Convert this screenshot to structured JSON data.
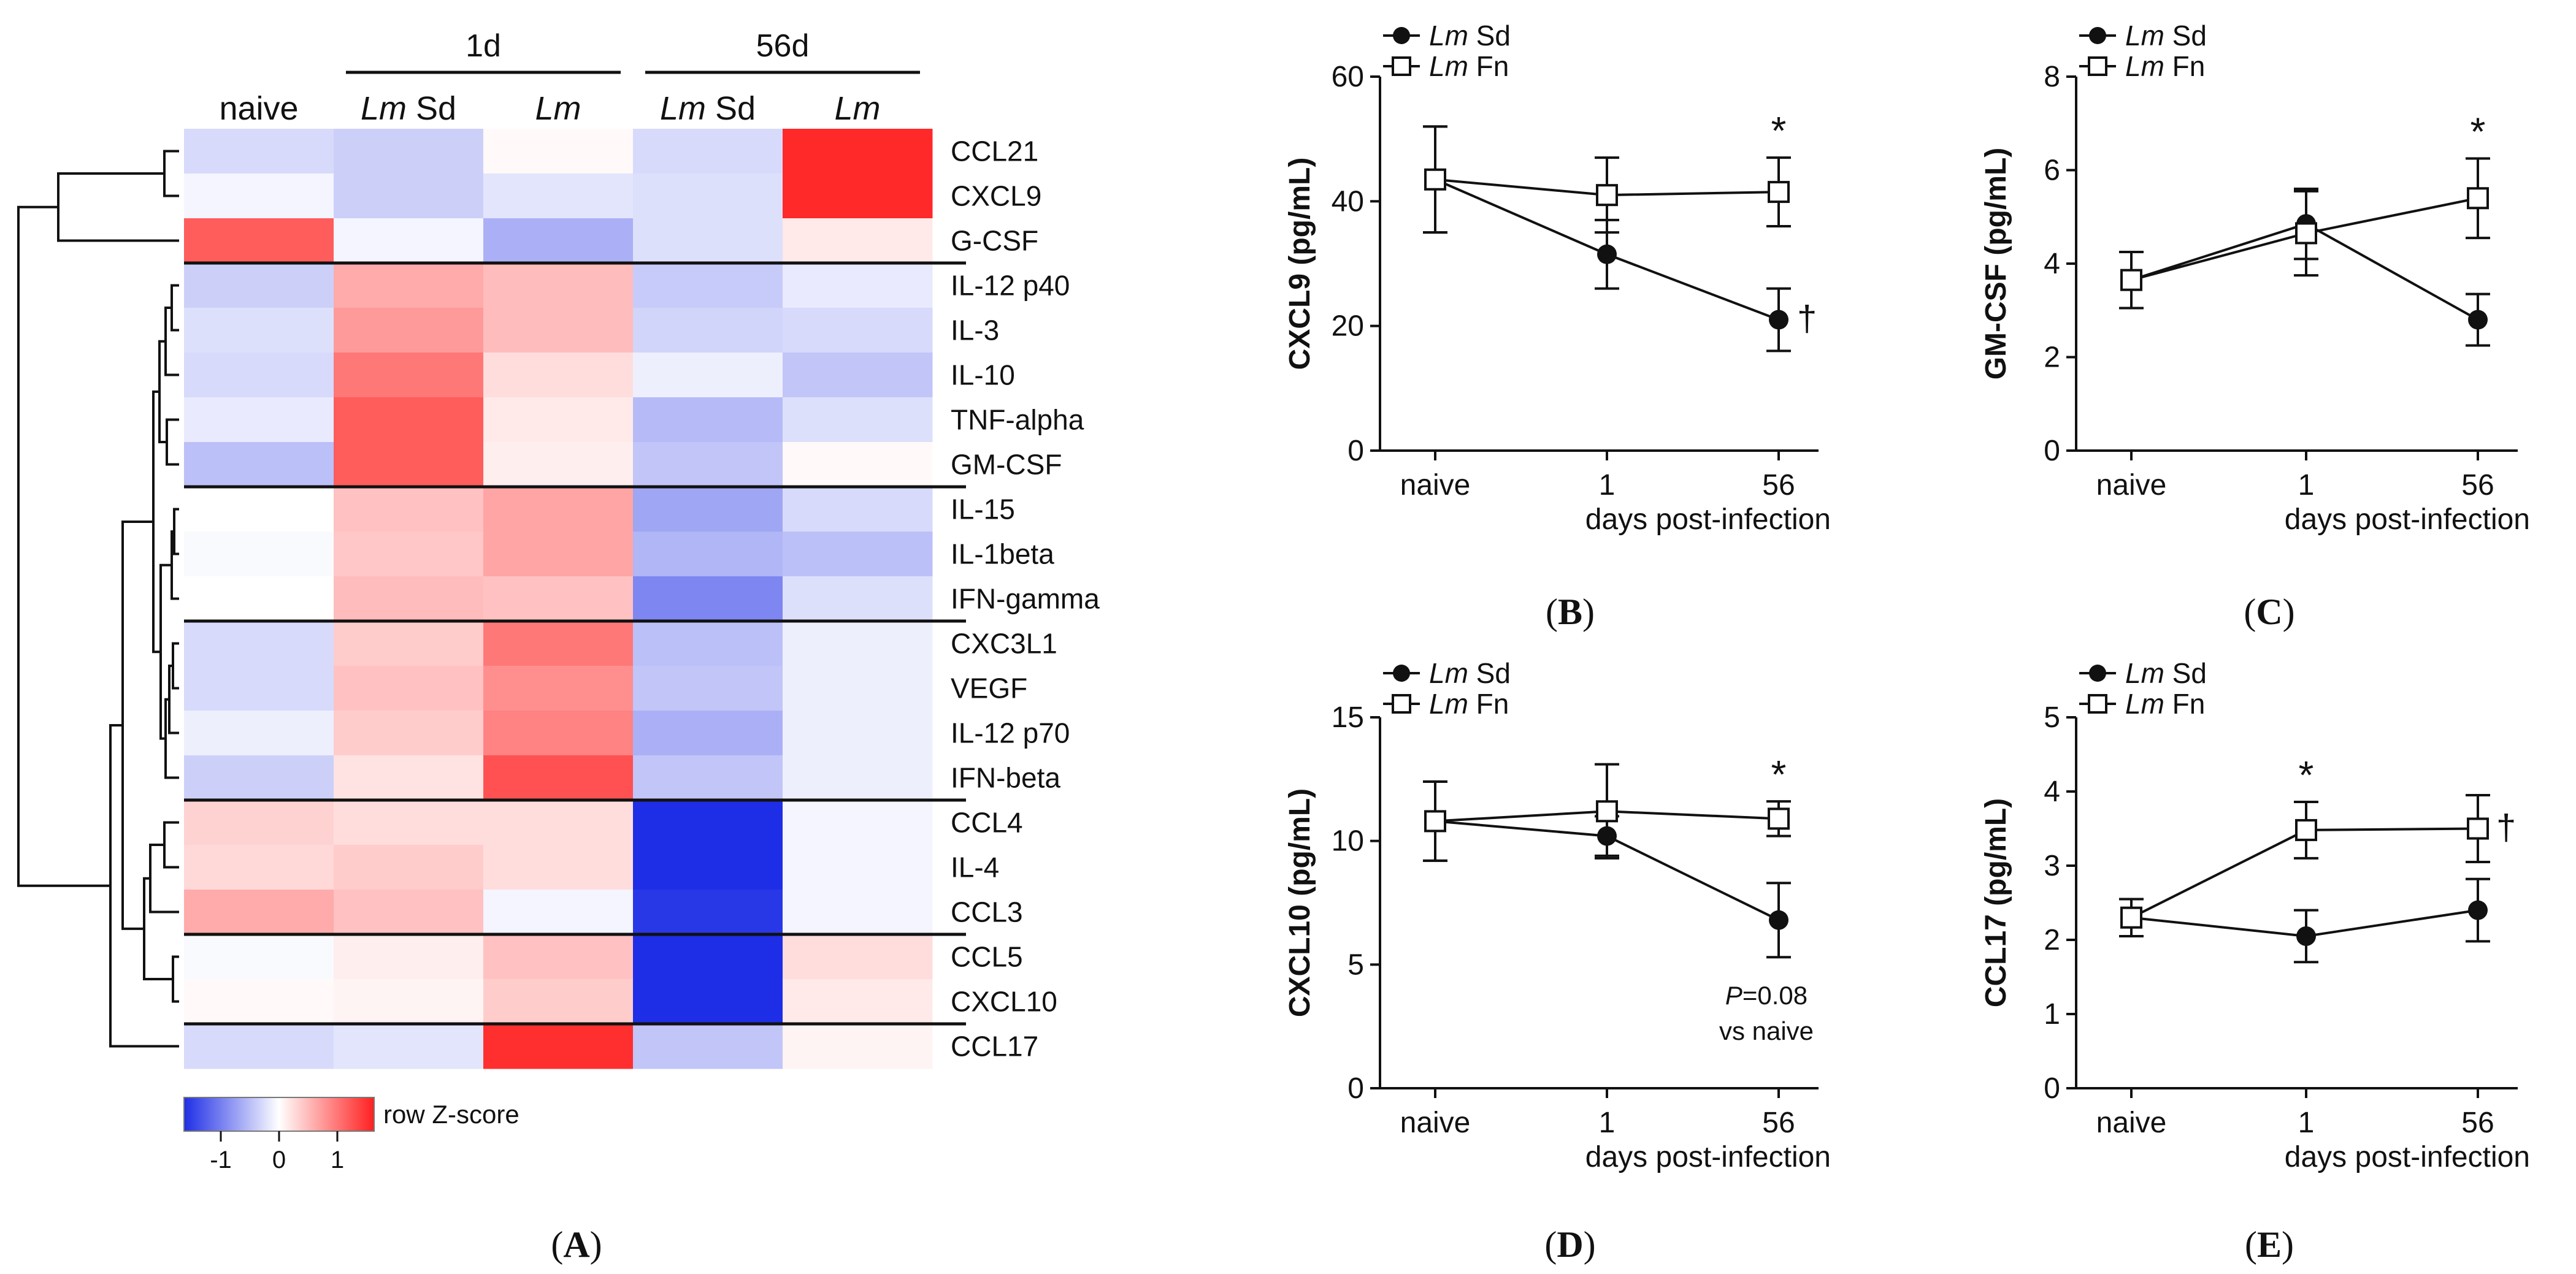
{
  "heatmap": {
    "group_headers": [
      "1d",
      "56d"
    ],
    "columns": [
      {
        "label": "naive",
        "italic": "",
        "rest": "naive"
      },
      {
        "label": "Lm Sd",
        "italic": "Lm",
        "rest": " Sd"
      },
      {
        "label": "Lm",
        "italic": "Lm",
        "rest": ""
      },
      {
        "label": "Lm Sd",
        "italic": "Lm",
        "rest": " Sd"
      },
      {
        "label": "Lm",
        "italic": "Lm",
        "rest": ""
      }
    ],
    "rows": [
      "CCL21",
      "CXCL9",
      "G-CSF",
      "IL-12 p40",
      "IL-3",
      "IL-10",
      "TNF-alpha",
      "GM-CSF",
      "IL-15",
      "IL-1beta",
      "IFN-gamma",
      "CXC3L1",
      "VEGF",
      "IL-12 p70",
      "IFN-beta",
      "CCL4",
      "IL-4",
      "CCL3",
      "CCL5",
      "CXCL10",
      "CCL17"
    ],
    "zscores": [
      [
        -0.35,
        -0.45,
        0.05,
        -0.35,
        1.9
      ],
      [
        -0.1,
        -0.45,
        -0.25,
        -0.3,
        1.9
      ],
      [
        1.45,
        -0.1,
        -0.75,
        -0.3,
        0.2
      ],
      [
        -0.45,
        0.75,
        0.6,
        -0.5,
        -0.2
      ],
      [
        -0.3,
        0.9,
        0.6,
        -0.4,
        -0.35
      ],
      [
        -0.35,
        1.2,
        0.3,
        -0.15,
        -0.55
      ],
      [
        -0.2,
        1.45,
        0.2,
        -0.65,
        -0.3
      ],
      [
        -0.6,
        1.45,
        0.15,
        -0.55,
        0.05
      ],
      [
        0.0,
        0.55,
        0.8,
        -0.85,
        -0.35
      ],
      [
        -0.05,
        0.5,
        0.8,
        -0.7,
        -0.6
      ],
      [
        0.0,
        0.6,
        0.55,
        -1.15,
        -0.3
      ],
      [
        -0.35,
        0.45,
        1.2,
        -0.6,
        -0.15
      ],
      [
        -0.35,
        0.55,
        1.0,
        -0.55,
        -0.15
      ],
      [
        -0.15,
        0.45,
        1.1,
        -0.75,
        -0.15
      ],
      [
        -0.45,
        0.25,
        1.55,
        -0.55,
        -0.15
      ],
      [
        0.4,
        0.3,
        0.3,
        -2.2,
        -0.1
      ],
      [
        0.35,
        0.45,
        0.3,
        -2.2,
        -0.1
      ],
      [
        0.75,
        0.55,
        -0.1,
        -1.9,
        -0.1
      ],
      [
        -0.05,
        0.15,
        0.55,
        -2.2,
        0.3
      ],
      [
        0.05,
        0.1,
        0.45,
        -2.2,
        0.2
      ],
      [
        -0.35,
        -0.25,
        1.85,
        -0.55,
        0.1
      ]
    ],
    "cluster_separators_after_rows": [
      3,
      8,
      11,
      15,
      18,
      20
    ],
    "legend": {
      "label": "row Z-score",
      "ticks": [
        "-1",
        "0",
        "1"
      ],
      "colors": [
        "#1f2ee6",
        "#ffffff",
        "#ff2020"
      ]
    }
  },
  "panel_letters": [
    "(A)",
    "(B)",
    "(C)",
    "(D)",
    "(E)"
  ],
  "chart_data": [
    {
      "type": "line",
      "panel": "(B)",
      "ylabel": "CXCL9 (pg/mL)",
      "xlabel": "days post-infection",
      "categories": [
        "naive",
        "1",
        "56"
      ],
      "ylim": [
        0,
        60
      ],
      "yticks": [
        "0",
        "20",
        "40",
        "60"
      ],
      "legend": [
        "Lm Sd",
        "Lm Fn"
      ],
      "series": [
        {
          "name": "Lm Sd",
          "marker": "filled-circle",
          "values": [
            43.5,
            31.5,
            21
          ],
          "errors": [
            8.5,
            5.5,
            5
          ]
        },
        {
          "name": "Lm Fn",
          "marker": "open-square",
          "values": [
            43.5,
            41,
            41.5
          ],
          "errors": [
            8.5,
            6,
            5.5
          ]
        }
      ],
      "annotations": [
        {
          "text": "*",
          "series": 1,
          "point": 2
        },
        {
          "text": "†",
          "series": 0,
          "point": 2
        }
      ]
    },
    {
      "type": "line",
      "panel": "(C)",
      "ylabel": "GM-CSF (pg/mL)",
      "xlabel": "days post-infection",
      "categories": [
        "naive",
        "1",
        "56"
      ],
      "ylim": [
        0,
        8
      ],
      "yticks": [
        "0",
        "2",
        "4",
        "6",
        "8"
      ],
      "legend": [
        "Lm Sd",
        "Lm Fn"
      ],
      "series": [
        {
          "name": "Lm Sd",
          "marker": "filled-circle",
          "values": [
            3.65,
            4.85,
            2.8
          ],
          "errors": [
            0.6,
            0.75,
            0.55
          ]
        },
        {
          "name": "Lm Fn",
          "marker": "open-square",
          "values": [
            3.65,
            4.65,
            5.4
          ],
          "errors": [
            0.6,
            0.9,
            0.85
          ]
        }
      ],
      "annotations": [
        {
          "text": "*",
          "series": 1,
          "point": 2
        }
      ]
    },
    {
      "type": "line",
      "panel": "(D)",
      "ylabel": "CXCL10 (pg/mL)",
      "xlabel": "days post-infection",
      "categories": [
        "naive",
        "1",
        "56"
      ],
      "ylim": [
        0,
        15
      ],
      "yticks": [
        "0",
        "5",
        "10",
        "15"
      ],
      "legend": [
        "Lm Sd",
        "Lm Fn"
      ],
      "series": [
        {
          "name": "Lm Sd",
          "marker": "filled-circle",
          "values": [
            10.8,
            10.2,
            6.8
          ],
          "errors": [
            1.6,
            0.8,
            1.5
          ]
        },
        {
          "name": "Lm Fn",
          "marker": "open-square",
          "values": [
            10.8,
            11.2,
            10.9
          ],
          "errors": [
            1.6,
            1.9,
            0.7
          ]
        }
      ],
      "annotations": [
        {
          "text": "*",
          "series": 1,
          "point": 2
        }
      ],
      "note": {
        "italic": "P",
        "rest": "=0.08",
        "line2": "vs naive"
      }
    },
    {
      "type": "line",
      "panel": "(E)",
      "ylabel": "CCL17 (pg/mL)",
      "xlabel": "days post-infection",
      "categories": [
        "naive",
        "1",
        "56"
      ],
      "ylim": [
        0,
        5
      ],
      "yticks": [
        "0",
        "1",
        "2",
        "3",
        "4",
        "5"
      ],
      "legend": [
        "Lm Sd",
        "Lm Fn"
      ],
      "series": [
        {
          "name": "Lm Sd",
          "marker": "filled-circle",
          "values": [
            2.3,
            2.05,
            2.4
          ],
          "errors": [
            0.25,
            0.35,
            0.42
          ]
        },
        {
          "name": "Lm Fn",
          "marker": "open-square",
          "values": [
            2.3,
            3.48,
            3.5
          ],
          "errors": [
            0.25,
            0.38,
            0.45
          ]
        }
      ],
      "annotations": [
        {
          "text": "*",
          "series": 1,
          "point": 1
        },
        {
          "text": "†",
          "series": 1,
          "point": 2
        }
      ]
    }
  ]
}
